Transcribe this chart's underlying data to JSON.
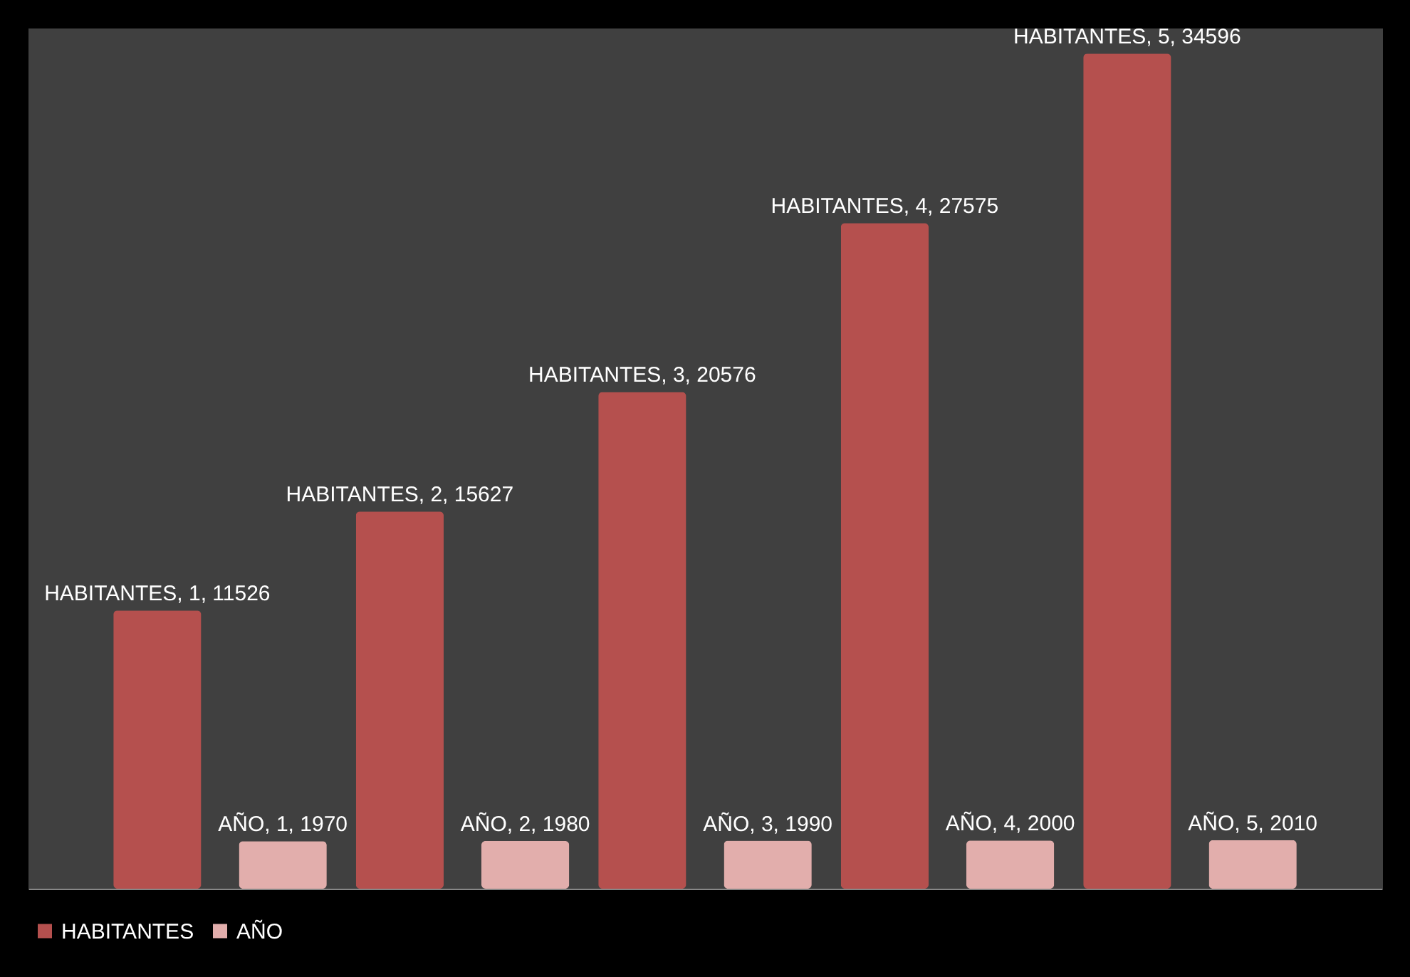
{
  "chart_data": {
    "type": "bar",
    "categories": [
      null,
      null,
      null,
      null,
      null
    ],
    "series": [
      {
        "name": "HABITANTES",
        "color": "#b5504e",
        "values": [
          11526,
          15627,
          20576,
          27575,
          34596
        ],
        "value_labels": [
          "HABITANTES, 1, 11526",
          "HABITANTES, 2, 15627",
          "HABITANTES, 3, 20576",
          "HABITANTES, 4, 27575",
          "HABITANTES, 5, 34596"
        ]
      },
      {
        "name": "AÑO",
        "color": "#e2aeac",
        "values": [
          1970,
          1980,
          1990,
          2000,
          2010
        ],
        "value_labels": [
          "AÑO, 1, 1970",
          "AÑO, 2, 1980",
          "AÑO, 3, 1990",
          "AÑO, 4, 2000",
          "AÑO, 5, 2010"
        ]
      }
    ],
    "legend": "bottom",
    "grid": false
  }
}
